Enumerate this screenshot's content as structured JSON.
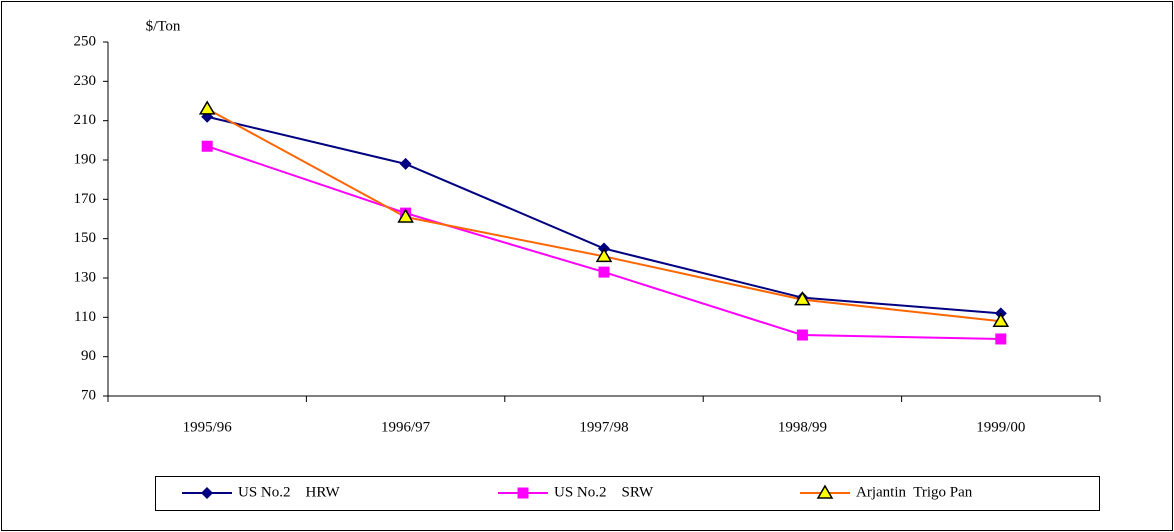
{
  "chart_data": {
    "type": "line",
    "ylabel": "$/Ton",
    "categories": [
      "1995/96",
      "1996/97",
      "1997/98",
      "1998/99",
      "1999/00"
    ],
    "series": [
      {
        "name": "US No.2    HRW",
        "color": "#000080",
        "marker": "diamond",
        "values": [
          212,
          188,
          145,
          120,
          112
        ]
      },
      {
        "name": "US No.2    SRW",
        "color": "#FF00FF",
        "marker": "square",
        "values": [
          197,
          163,
          133,
          101,
          99
        ]
      },
      {
        "name": "Arjantin  Trigo Pan",
        "color": "#FF6600",
        "marker": "triangle",
        "marker_fill": "#FFFF00",
        "values": [
          216,
          161,
          141,
          119,
          108
        ]
      }
    ],
    "ylim": [
      70,
      250
    ],
    "yticks": [
      70,
      90,
      110,
      130,
      150,
      170,
      190,
      210,
      230,
      250
    ],
    "grid": false,
    "legend": "bottom"
  }
}
